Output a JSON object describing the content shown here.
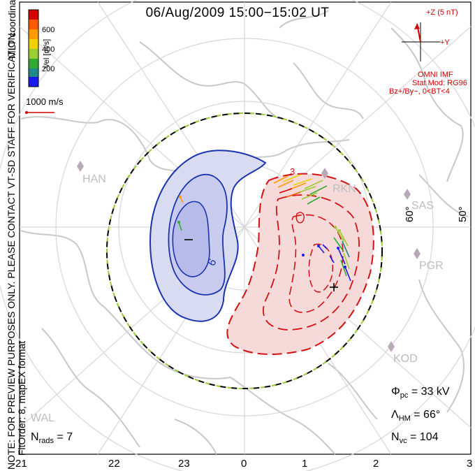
{
  "title": "06/Aug/2009  15:00−15:02  UT",
  "side_note": "NOTE: FOR PREVIEW PURPOSES ONLY. PLEASE CONTACT VT-SD STAFF FOR VERIFICATION.",
  "mlt_coordinates_label": "MLT coordinates",
  "fit_order_label": "FitOrder: 8, mapEX format",
  "color_scale": {
    "label": "Vel [m/s]",
    "ticks": [
      "600",
      "400",
      "200"
    ],
    "colors": [
      "#d40000",
      "#ff5a00",
      "#ff9a00",
      "#f0d000",
      "#9acd32",
      "#33aa33",
      "#1f8a8a",
      "#1a1aee"
    ]
  },
  "reference_vector_label": "1000 m/s",
  "imf": {
    "z_label": "+Z (5 nT)",
    "y_label": "+Y",
    "source": "OMNI IMF",
    "stat_mod": "Stat Mod: RG96",
    "condition": "Bz+/By−, 0<BT<4"
  },
  "radar_sites": [
    "HAN",
    "RKN",
    "SAS",
    "PGR",
    "KOD",
    "WAL"
  ],
  "latitude_labels": [
    "60°",
    "50°"
  ],
  "mlt_labels": [
    "21",
    "22",
    "23",
    "0",
    "1",
    "2",
    "3"
  ],
  "contour_symbols": {
    "min": "−",
    "max": "+",
    "blue_label": "6",
    "red_label": "3"
  },
  "stats": {
    "phi_pc_symbol": "Φ",
    "phi_pc_sub": "pc",
    "phi_pc_value": "= 33 kV",
    "lambda_hm_symbol": "Λ",
    "lambda_hm_sub": "HM",
    "lambda_hm_value": "= 66°",
    "n_vc_symbol": "N",
    "n_vc_sub": "vc",
    "n_vc_value": "= 104",
    "n_rads_symbol": "N",
    "n_rads_sub": "rads",
    "n_rads_value": "= 7"
  },
  "colors": {
    "negative_cell": "#1a33b0",
    "positive_cell": "#d41010",
    "hmb": "#000000",
    "continents": "#c8c8c8",
    "grid": "#d7d7d7"
  }
}
